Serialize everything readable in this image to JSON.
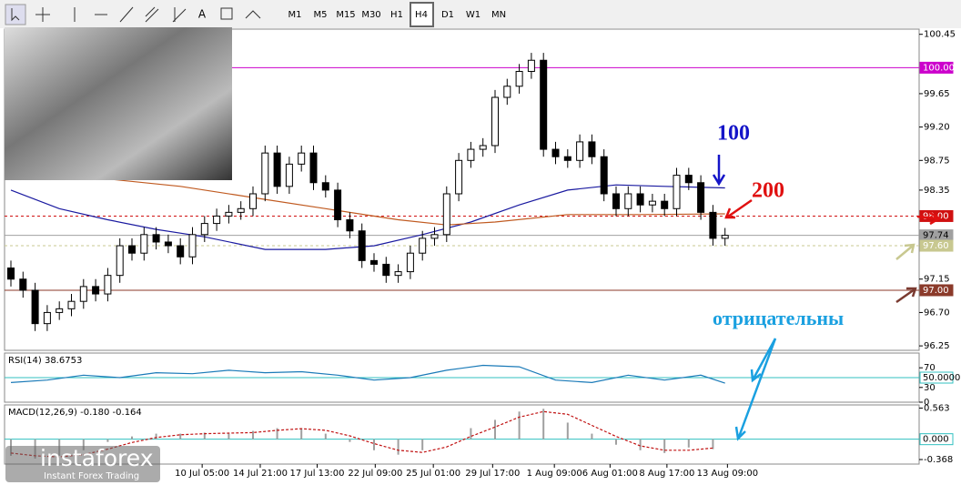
{
  "toolbar": {
    "timeframes": [
      "M1",
      "M5",
      "M15",
      "M30",
      "H1",
      "H4",
      "D1",
      "W1",
      "MN"
    ],
    "active_index": 5
  },
  "logo": {
    "name": "instaforex",
    "tagline": "Instant Forex Trading"
  },
  "annotations": [
    {
      "text": "100",
      "color": "#1414c8"
    },
    {
      "text": "200",
      "color": "#e01010"
    },
    {
      "text": "отрицательны",
      "color": "#1aa0e0"
    }
  ],
  "chart_data": [
    {
      "type": "candlestick",
      "ylim": [
        96.19,
        100.52
      ],
      "yticks": [
        {
          "value": 100.45,
          "label": "100.45"
        },
        {
          "value": 99.65,
          "label": "99.65"
        },
        {
          "value": 99.2,
          "label": "99.20"
        },
        {
          "value": 98.75,
          "label": "98.75"
        },
        {
          "value": 98.35,
          "label": "98.35"
        },
        {
          "value": 97.15,
          "label": "97.15"
        },
        {
          "value": 96.7,
          "label": "96.70"
        },
        {
          "value": 96.25,
          "label": "96.25"
        }
      ],
      "xticks": [
        {
          "value": 15.8,
          "label": "10 Jul 05:00"
        },
        {
          "value": 20.6,
          "label": "14 Jul 21:00"
        },
        {
          "value": 25.3,
          "label": "17 Jul 13:00"
        },
        {
          "value": 30.1,
          "label": "22 Jul 09:00"
        },
        {
          "value": 34.9,
          "label": "25 Jul 01:00"
        },
        {
          "value": 39.8,
          "label": "29 Jul 17:00"
        },
        {
          "value": 44.9,
          "label": "1 Aug 09:00"
        },
        {
          "value": 49.5,
          "label": "6 Aug 01:00"
        },
        {
          "value": 54.2,
          "label": "8 Aug 17:00"
        },
        {
          "value": 59.2,
          "label": "13 Aug 09:00"
        }
      ],
      "up_color": "#ffffff",
      "down_color": "#000000",
      "open": [
        97.3,
        97.15,
        97.0,
        96.55,
        96.7,
        96.75,
        96.85,
        97.05,
        96.95,
        97.2,
        97.6,
        97.5,
        97.75,
        97.65,
        97.6,
        97.45,
        97.75,
        97.9,
        98.0,
        98.05,
        98.1,
        98.3,
        98.85,
        98.4,
        98.7,
        98.85,
        98.45,
        98.35,
        97.95,
        97.8,
        97.4,
        97.35,
        97.2,
        97.25,
        97.5,
        97.7,
        97.75,
        98.3,
        98.75,
        98.9,
        98.95,
        99.6,
        99.75,
        99.95,
        100.1,
        98.9,
        98.8,
        98.75,
        99.0,
        98.8,
        98.3,
        98.1,
        98.3,
        98.15,
        98.2,
        98.1,
        98.55,
        98.45,
        98.05,
        97.7
      ],
      "high": [
        97.4,
        97.25,
        97.1,
        96.8,
        96.85,
        96.95,
        97.15,
        97.15,
        97.3,
        97.7,
        97.7,
        97.85,
        97.85,
        97.75,
        97.7,
        97.85,
        98.0,
        98.1,
        98.15,
        98.2,
        98.4,
        98.95,
        98.95,
        98.8,
        98.95,
        98.95,
        98.55,
        98.45,
        98.05,
        97.9,
        97.5,
        97.45,
        97.35,
        97.6,
        97.8,
        97.85,
        98.4,
        98.85,
        99.0,
        99.05,
        99.7,
        99.85,
        100.05,
        100.2,
        100.2,
        99.0,
        98.9,
        99.1,
        99.1,
        98.9,
        98.4,
        98.4,
        98.4,
        98.3,
        98.3,
        98.65,
        98.65,
        98.55,
        98.15,
        97.84
      ],
      "low": [
        97.05,
        96.9,
        96.45,
        96.45,
        96.6,
        96.65,
        96.75,
        96.85,
        96.85,
        97.1,
        97.4,
        97.4,
        97.55,
        97.5,
        97.35,
        97.35,
        97.65,
        97.8,
        97.9,
        97.95,
        98.0,
        98.2,
        98.3,
        98.3,
        98.6,
        98.35,
        98.25,
        97.85,
        97.7,
        97.3,
        97.25,
        97.1,
        97.1,
        97.15,
        97.4,
        97.6,
        97.65,
        98.2,
        98.65,
        98.8,
        98.85,
        99.5,
        99.65,
        99.85,
        98.8,
        98.7,
        98.65,
        98.65,
        98.7,
        98.2,
        98.0,
        98.0,
        98.05,
        98.05,
        98.0,
        98.0,
        98.35,
        97.95,
        97.6,
        97.6
      ],
      "close": [
        97.15,
        97.0,
        96.55,
        96.7,
        96.75,
        96.85,
        97.05,
        96.95,
        97.2,
        97.6,
        97.5,
        97.75,
        97.65,
        97.6,
        97.45,
        97.75,
        97.9,
        98.0,
        98.05,
        98.1,
        98.3,
        98.85,
        98.4,
        98.7,
        98.85,
        98.45,
        98.35,
        97.95,
        97.8,
        97.4,
        97.35,
        97.2,
        97.25,
        97.5,
        97.7,
        97.75,
        98.3,
        98.75,
        98.9,
        98.95,
        99.6,
        99.75,
        99.95,
        100.1,
        98.9,
        98.8,
        98.75,
        99.0,
        98.8,
        98.3,
        98.1,
        98.3,
        98.15,
        98.2,
        98.1,
        98.55,
        98.45,
        98.05,
        97.7,
        97.74
      ],
      "indicators": [
        {
          "color": "#1a1aa0",
          "x": [
            0,
            4,
            8,
            12,
            16,
            21,
            26,
            30,
            34,
            38,
            42,
            46,
            50,
            54,
            59
          ],
          "values": [
            98.35,
            98.1,
            97.95,
            97.82,
            97.72,
            97.55,
            97.55,
            97.6,
            97.75,
            97.92,
            98.15,
            98.35,
            98.42,
            98.4,
            98.38
          ]
        },
        {
          "color": "#c05a20",
          "x": [
            8,
            14,
            20,
            26,
            32,
            36,
            40,
            46,
            52,
            59
          ],
          "values": [
            98.5,
            98.4,
            98.25,
            98.1,
            97.95,
            97.88,
            97.92,
            98.02,
            98.02,
            98.03
          ]
        }
      ],
      "levels": [
        {
          "value": 100,
          "label": "100.00",
          "color": "#cc00cc",
          "text_color": "#ffffff",
          "dash": false
        },
        {
          "value": 98,
          "label": "98.00",
          "color": "#d01010",
          "text_color": "#ffffff",
          "dash": true
        },
        {
          "value": 97.74,
          "label": "97.74",
          "color": "#a0a0a0",
          "text_color": "#000000",
          "dash": false
        },
        {
          "value": 97.6,
          "label": "97.60",
          "color": "#c8c890",
          "text_color": "#ffffff",
          "dash": true
        },
        {
          "value": 97,
          "label": "97.00",
          "color": "#8b3a2a",
          "text_color": "#ffffff",
          "dash": false
        }
      ]
    },
    {
      "type": "line",
      "title": "RSI(14) 38.6753",
      "ylim": [
        0,
        100
      ],
      "yticks": [
        70,
        30,
        0
      ],
      "color": "#1a7ab8",
      "x": [
        0,
        3,
        6,
        9,
        12,
        15,
        18,
        21,
        24,
        27,
        30,
        33,
        36,
        39,
        42,
        45,
        48,
        51,
        54,
        57,
        59
      ],
      "values": [
        40,
        45,
        55,
        50,
        60,
        58,
        65,
        60,
        62,
        55,
        45,
        50,
        65,
        75,
        72,
        45,
        40,
        55,
        45,
        55,
        38.6753
      ],
      "levels": [
        {
          "value": 50,
          "label": "50.0000",
          "color": "#30c0c0"
        }
      ]
    },
    {
      "type": "macd",
      "title": "MACD(12,26,9) -0.180 -0.164",
      "ylim": [
        -0.45,
        0.62
      ],
      "yticks": [
        {
          "value": 0.563,
          "label": "0.563"
        },
        {
          "value": -0.368,
          "label": "-0.368"
        }
      ],
      "color": "#a0a0a0",
      "signal_color": "#c01010",
      "x": [
        0,
        2,
        4,
        6,
        8,
        10,
        12,
        14,
        16,
        18,
        20,
        22,
        24,
        26,
        28,
        30,
        32,
        34,
        36,
        38,
        40,
        42,
        44,
        46,
        48,
        50,
        52,
        54,
        56,
        58
      ],
      "values": [
        -0.3,
        -0.35,
        -0.3,
        -0.2,
        -0.05,
        0.05,
        0.1,
        0.1,
        0.12,
        0.1,
        0.15,
        0.2,
        0.2,
        0.1,
        -0.05,
        -0.2,
        -0.28,
        -0.2,
        0.0,
        0.2,
        0.35,
        0.5,
        0.55,
        0.3,
        0.1,
        -0.1,
        -0.2,
        -0.25,
        -0.15,
        -0.18
      ],
      "signal_values": [
        -0.25,
        -0.3,
        -0.32,
        -0.28,
        -0.18,
        -0.06,
        0.03,
        0.08,
        0.1,
        0.11,
        0.12,
        0.16,
        0.19,
        0.16,
        0.06,
        -0.08,
        -0.2,
        -0.24,
        -0.14,
        0.05,
        0.22,
        0.4,
        0.5,
        0.45,
        0.25,
        0.05,
        -0.12,
        -0.2,
        -0.2,
        -0.16
      ],
      "levels": [
        {
          "value": 0,
          "label": "0.000",
          "color": "#30c0c0"
        }
      ]
    }
  ]
}
